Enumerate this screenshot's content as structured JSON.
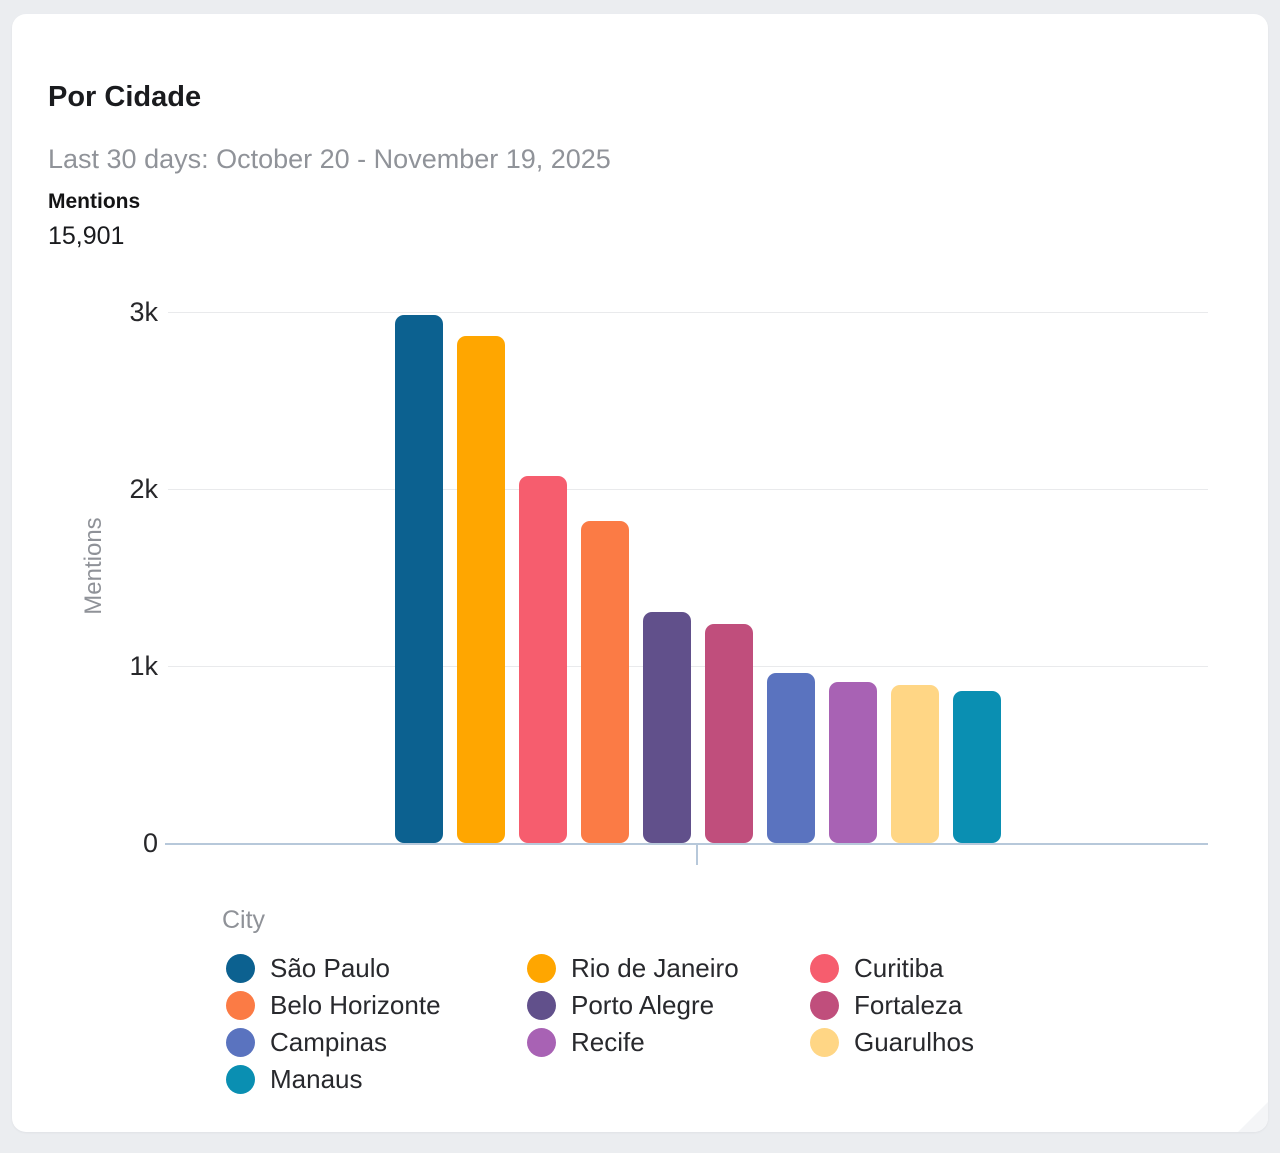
{
  "header": {
    "title": "Por Cidade",
    "subtitle": "Last 30 days: October 20 - November 19, 2025",
    "metric_label": "Mentions",
    "metric_value": "15,901"
  },
  "chart_data": {
    "type": "bar",
    "title": "Por Cidade",
    "subtitle": "Last 30 days: October 20 - November 19, 2025",
    "total_label": "Mentions",
    "total_value": 15901,
    "xlabel": "",
    "ylabel": "Mentions",
    "ylim": [
      0,
      3000
    ],
    "grid": "horizontal",
    "legend_title": "City",
    "legend_position": "bottom",
    "yticks": [
      {
        "value": 0,
        "label": "0"
      },
      {
        "value": 1000,
        "label": "1k"
      },
      {
        "value": 2000,
        "label": "2k"
      },
      {
        "value": 3000,
        "label": "3k"
      }
    ],
    "series": [
      {
        "name": "São Paulo",
        "value": 2983,
        "color": "#0c6190"
      },
      {
        "name": "Rio de Janeiro",
        "value": 2862,
        "color": "#ffa600"
      },
      {
        "name": "Curitiba",
        "value": 2073,
        "color": "#f65d6e"
      },
      {
        "name": "Belo Horizonte",
        "value": 1820,
        "color": "#fb7b45"
      },
      {
        "name": "Porto Alegre",
        "value": 1305,
        "color": "#61508b"
      },
      {
        "name": "Fortaleza",
        "value": 1239,
        "color": "#c04e7c"
      },
      {
        "name": "Campinas",
        "value": 961,
        "color": "#5a73bf"
      },
      {
        "name": "Recife",
        "value": 910,
        "color": "#a862b4"
      },
      {
        "name": "Guarulhos",
        "value": 892,
        "color": "#ffd685"
      },
      {
        "name": "Manaus",
        "value": 856,
        "color": "#0a8fb2"
      }
    ],
    "colors": {
      "baseline": "#b7c8da",
      "gridline": "#e9eaec",
      "tick_text": "#27272a",
      "muted_text": "#8f9298",
      "card_bg": "#ffffff",
      "page_bg": "#ebedf0"
    }
  }
}
